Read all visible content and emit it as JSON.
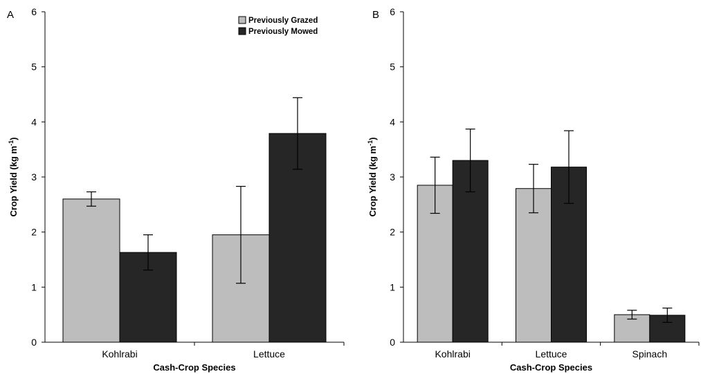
{
  "colors": {
    "grazed": "#bdbdbd",
    "mowed": "#262626",
    "axis": "#000000"
  },
  "legend": {
    "grazed_label": "Previously Grazed",
    "mowed_label": "Previously Mowed"
  },
  "chart_data": [
    {
      "type": "bar",
      "panel_label": "A",
      "title": "",
      "xlabel": "Cash-Crop Species",
      "ylabel": "Crop Yield (kg m",
      "ylabel_superscript": "-1",
      "ylabel_suffix": ")",
      "ylim": [
        0,
        6
      ],
      "yticks": [
        0,
        1,
        2,
        3,
        4,
        5,
        6
      ],
      "categories": [
        "Kohlrabi",
        "Lettuce"
      ],
      "grid": false,
      "legend_position": "top-right",
      "series": [
        {
          "name": "Previously Grazed",
          "values": [
            2.6,
            1.95
          ],
          "error": [
            0.13,
            0.88
          ]
        },
        {
          "name": "Previously Mowed",
          "values": [
            1.63,
            3.79
          ],
          "error": [
            0.32,
            0.65
          ]
        }
      ]
    },
    {
      "type": "bar",
      "panel_label": "B",
      "title": "",
      "xlabel": "Cash-Crop Species",
      "ylabel": "Crop Yield (kg m",
      "ylabel_superscript": "-1",
      "ylabel_suffix": ")",
      "ylim": [
        0,
        6
      ],
      "yticks": [
        0,
        1,
        2,
        3,
        4,
        5,
        6
      ],
      "categories": [
        "Kohlrabi",
        "Lettuce",
        "Spinach"
      ],
      "grid": false,
      "legend_position": "none",
      "series": [
        {
          "name": "Previously Grazed",
          "values": [
            2.85,
            2.79,
            0.5
          ],
          "error": [
            0.51,
            0.44,
            0.08
          ]
        },
        {
          "name": "Previously Mowed",
          "values": [
            3.3,
            3.18,
            0.49
          ],
          "error": [
            0.57,
            0.66,
            0.13
          ]
        }
      ]
    }
  ]
}
